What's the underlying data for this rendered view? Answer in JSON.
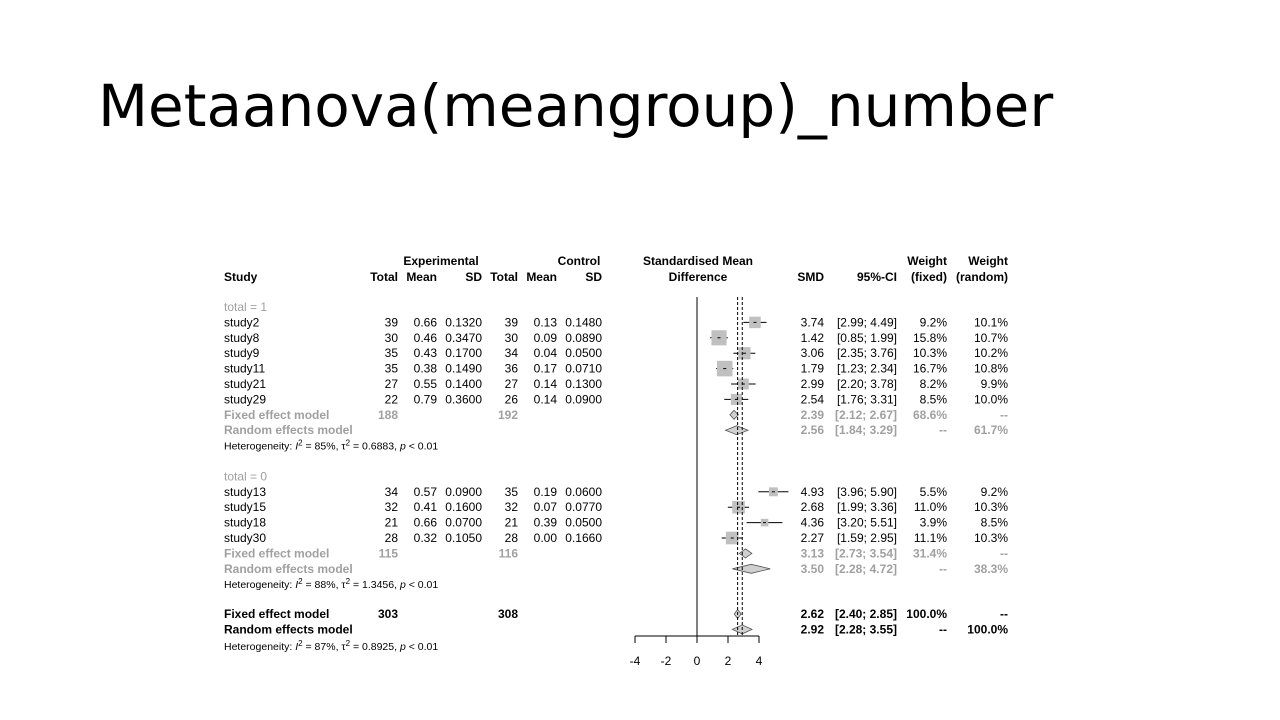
{
  "slide": {
    "title": "Metaanova(meangroup)_number"
  },
  "chart_data": {
    "type": "forest",
    "header": {
      "study": "Study",
      "experimental": "Experimental",
      "control": "Control",
      "total": "Total",
      "mean": "Mean",
      "sd": "SD",
      "smd_title_1": "Standardised Mean",
      "smd_title_2": "Difference",
      "smd": "SMD",
      "ci": "95%-CI",
      "weight_1": "Weight",
      "weight_fixed": "(fixed)",
      "weight_random": "(random)"
    },
    "xaxis": {
      "min": -4,
      "max": 4,
      "ticks": [
        "-4",
        "-2",
        "0",
        "2",
        "4"
      ],
      "dashed_lines": [
        2.62,
        2.92
      ]
    },
    "subgroups": [
      {
        "label": "total = 1",
        "studies": [
          {
            "name": "study2",
            "e_total": "39",
            "e_mean": "0.66",
            "e_sd": "0.1320",
            "c_total": "39",
            "c_mean": "0.13",
            "c_sd": "0.1480",
            "smd": 3.74,
            "lo": 2.99,
            "hi": 4.49,
            "smd_text": "3.74",
            "ci": "[2.99; 4.49]",
            "w_fixed": "9.2%",
            "w_random": "10.1%"
          },
          {
            "name": "study8",
            "e_total": "30",
            "e_mean": "0.46",
            "e_sd": "0.3470",
            "c_total": "30",
            "c_mean": "0.09",
            "c_sd": "0.0890",
            "smd": 1.42,
            "lo": 0.85,
            "hi": 1.99,
            "smd_text": "1.42",
            "ci": "[0.85; 1.99]",
            "w_fixed": "15.8%",
            "w_random": "10.7%"
          },
          {
            "name": "study9",
            "e_total": "35",
            "e_mean": "0.43",
            "e_sd": "0.1700",
            "c_total": "34",
            "c_mean": "0.04",
            "c_sd": "0.0500",
            "smd": 3.06,
            "lo": 2.35,
            "hi": 3.76,
            "smd_text": "3.06",
            "ci": "[2.35; 3.76]",
            "w_fixed": "10.3%",
            "w_random": "10.2%"
          },
          {
            "name": "study11",
            "e_total": "35",
            "e_mean": "0.38",
            "e_sd": "0.1490",
            "c_total": "36",
            "c_mean": "0.17",
            "c_sd": "0.0710",
            "smd": 1.79,
            "lo": 1.23,
            "hi": 2.34,
            "smd_text": "1.79",
            "ci": "[1.23; 2.34]",
            "w_fixed": "16.7%",
            "w_random": "10.8%"
          },
          {
            "name": "study21",
            "e_total": "27",
            "e_mean": "0.55",
            "e_sd": "0.1400",
            "c_total": "27",
            "c_mean": "0.14",
            "c_sd": "0.1300",
            "smd": 2.99,
            "lo": 2.2,
            "hi": 3.78,
            "smd_text": "2.99",
            "ci": "[2.20; 3.78]",
            "w_fixed": "8.2%",
            "w_random": "9.9%"
          },
          {
            "name": "study29",
            "e_total": "22",
            "e_mean": "0.79",
            "e_sd": "0.3600",
            "c_total": "26",
            "c_mean": "0.14",
            "c_sd": "0.0900",
            "smd": 2.54,
            "lo": 1.76,
            "hi": 3.31,
            "smd_text": "2.54",
            "ci": "[1.76; 3.31]",
            "w_fixed": "8.5%",
            "w_random": "10.0%"
          }
        ],
        "fixed": {
          "label": "Fixed effect model",
          "e_total": "188",
          "c_total": "192",
          "smd": 2.39,
          "lo": 2.12,
          "hi": 2.67,
          "smd_text": "2.39",
          "ci": "[2.12; 2.67]",
          "w_fixed": "68.6%",
          "w_random": "--"
        },
        "random": {
          "label": "Random effects model",
          "smd": 2.56,
          "lo": 1.84,
          "hi": 3.29,
          "smd_text": "2.56",
          "ci": "[1.84; 3.29]",
          "w_fixed": "--",
          "w_random": "61.7%"
        },
        "heterogeneity": {
          "prefix": "Heterogeneity: ",
          "i2": "= 85%, ",
          "tau2": "= 0.6883, ",
          "p": "< 0.01"
        }
      },
      {
        "label": "total = 0",
        "studies": [
          {
            "name": "study13",
            "e_total": "34",
            "e_mean": "0.57",
            "e_sd": "0.0900",
            "c_total": "35",
            "c_mean": "0.19",
            "c_sd": "0.0600",
            "smd": 4.93,
            "lo": 3.96,
            "hi": 5.9,
            "smd_text": "4.93",
            "ci": "[3.96; 5.90]",
            "w_fixed": "5.5%",
            "w_random": "9.2%"
          },
          {
            "name": "study15",
            "e_total": "32",
            "e_mean": "0.41",
            "e_sd": "0.1600",
            "c_total": "32",
            "c_mean": "0.07",
            "c_sd": "0.0770",
            "smd": 2.68,
            "lo": 1.99,
            "hi": 3.36,
            "smd_text": "2.68",
            "ci": "[1.99; 3.36]",
            "w_fixed": "11.0%",
            "w_random": "10.3%"
          },
          {
            "name": "study18",
            "e_total": "21",
            "e_mean": "0.66",
            "e_sd": "0.0700",
            "c_total": "21",
            "c_mean": "0.39",
            "c_sd": "0.0500",
            "smd": 4.36,
            "lo": 3.2,
            "hi": 5.51,
            "smd_text": "4.36",
            "ci": "[3.20; 5.51]",
            "w_fixed": "3.9%",
            "w_random": "8.5%"
          },
          {
            "name": "study30",
            "e_total": "28",
            "e_mean": "0.32",
            "e_sd": "0.1050",
            "c_total": "28",
            "c_mean": "0.00",
            "c_sd": "0.1660",
            "smd": 2.27,
            "lo": 1.59,
            "hi": 2.95,
            "smd_text": "2.27",
            "ci": "[1.59; 2.95]",
            "w_fixed": "11.1%",
            "w_random": "10.3%"
          }
        ],
        "fixed": {
          "label": "Fixed effect model",
          "e_total": "115",
          "c_total": "116",
          "smd": 3.13,
          "lo": 2.73,
          "hi": 3.54,
          "smd_text": "3.13",
          "ci": "[2.73; 3.54]",
          "w_fixed": "31.4%",
          "w_random": "--"
        },
        "random": {
          "label": "Random effects model",
          "smd": 3.5,
          "lo": 2.28,
          "hi": 4.72,
          "smd_text": "3.50",
          "ci": "[2.28; 4.72]",
          "w_fixed": "--",
          "w_random": "38.3%"
        },
        "heterogeneity": {
          "prefix": "Heterogeneity: ",
          "i2": "= 88%, ",
          "tau2": "= 1.3456, ",
          "p": "< 0.01"
        }
      }
    ],
    "overall": {
      "fixed": {
        "label": "Fixed effect model",
        "e_total": "303",
        "c_total": "308",
        "smd": 2.62,
        "lo": 2.4,
        "hi": 2.85,
        "smd_text": "2.62",
        "ci": "[2.40; 2.85]",
        "w_fixed": "100.0%",
        "w_random": "--"
      },
      "random": {
        "label": "Random effects model",
        "smd": 2.92,
        "lo": 2.28,
        "hi": 3.55,
        "smd_text": "2.92",
        "ci": "[2.28; 3.55]",
        "w_fixed": "--",
        "w_random": "100.0%"
      },
      "heterogeneity": {
        "prefix": "Heterogeneity: ",
        "i2": "= 87%, ",
        "tau2": "= 0.8925, ",
        "p": "< 0.01"
      }
    },
    "colors": {
      "text": "#000000",
      "subgroup_summary": "#a0a0a0",
      "box": "#c0c0c0",
      "diamond": "#d0d0d0"
    }
  }
}
